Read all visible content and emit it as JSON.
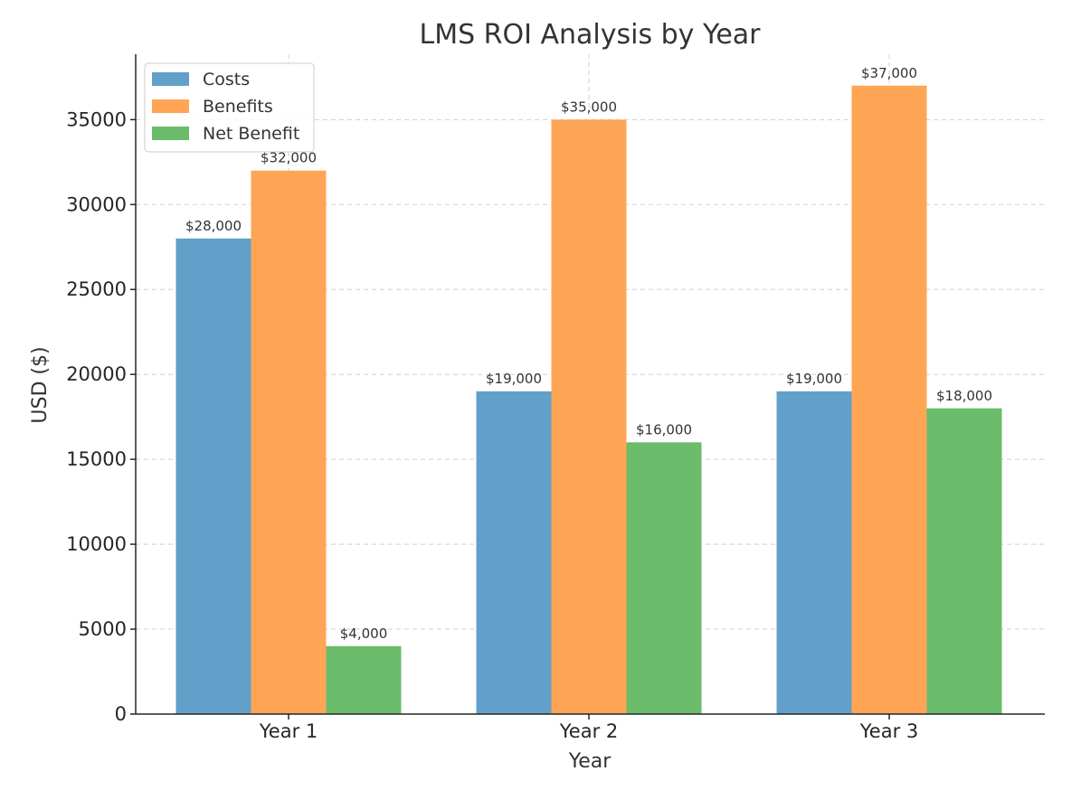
{
  "chart_data": {
    "type": "bar",
    "title": "LMS ROI Analysis by Year",
    "xlabel": "Year",
    "ylabel": "USD ($)",
    "categories": [
      "Year 1",
      "Year 2",
      "Year 3"
    ],
    "series": [
      {
        "name": "Costs",
        "color": "#62a0ca",
        "values": [
          28000,
          19000,
          19000
        ],
        "labels": [
          "$28,000",
          "$19,000",
          "$19,000"
        ]
      },
      {
        "name": "Benefits",
        "color": "#ffa556",
        "values": [
          32000,
          35000,
          37000
        ],
        "labels": [
          "$32,000",
          "$35,000",
          "$37,000"
        ]
      },
      {
        "name": "Net Benefit",
        "color": "#6bbc6b",
        "values": [
          4000,
          16000,
          18000
        ],
        "labels": [
          "$4,000",
          "$16,000",
          "$18,000"
        ]
      }
    ],
    "ylim": [
      0,
      38850
    ],
    "yticks": [
      0,
      5000,
      10000,
      15000,
      20000,
      25000,
      30000,
      35000
    ],
    "ytick_labels": [
      "0",
      "5000",
      "10000",
      "15000",
      "20000",
      "25000",
      "30000",
      "35000"
    ],
    "grid": true,
    "legend_position": "top-left"
  }
}
